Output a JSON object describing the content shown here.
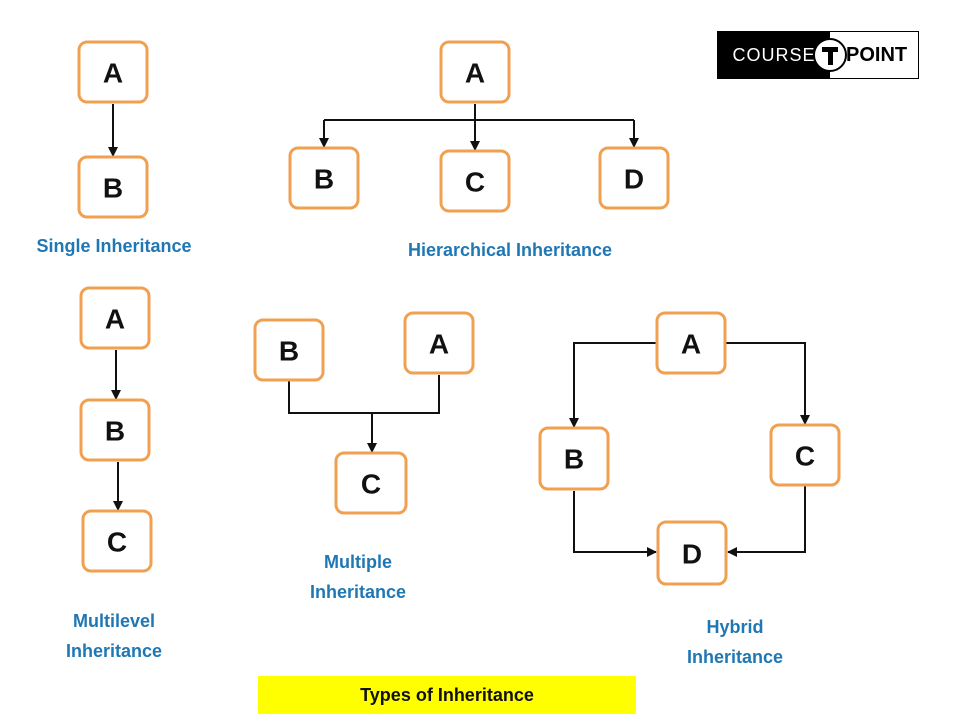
{
  "diagrams": [
    {
      "key": "single",
      "title": "Single Inheritance",
      "nodes": [
        {
          "id": "A",
          "label": "A"
        },
        {
          "id": "B",
          "label": "B"
        }
      ],
      "edges": [
        [
          "A",
          "B"
        ]
      ]
    },
    {
      "key": "hierarchical",
      "title": "Hierarchical Inheritance",
      "nodes": [
        {
          "id": "A",
          "label": "A"
        },
        {
          "id": "B",
          "label": "B"
        },
        {
          "id": "C",
          "label": "C"
        },
        {
          "id": "D",
          "label": "D"
        }
      ],
      "edges": [
        [
          "A",
          "B"
        ],
        [
          "A",
          "C"
        ],
        [
          "A",
          "D"
        ]
      ]
    },
    {
      "key": "multilevel",
      "title": "Multilevel Inheritance",
      "nodes": [
        {
          "id": "A",
          "label": "A"
        },
        {
          "id": "B",
          "label": "B"
        },
        {
          "id": "C",
          "label": "C"
        }
      ],
      "edges": [
        [
          "A",
          "B"
        ],
        [
          "B",
          "C"
        ]
      ]
    },
    {
      "key": "multiple",
      "title": "Multiple Inheritance",
      "nodes": [
        {
          "id": "B",
          "label": "B"
        },
        {
          "id": "A",
          "label": "A"
        },
        {
          "id": "C",
          "label": "C"
        }
      ],
      "edges": [
        [
          "B",
          "C"
        ],
        [
          "A",
          "C"
        ]
      ]
    },
    {
      "key": "hybrid",
      "title": "Hybrid Inheritance",
      "nodes": [
        {
          "id": "A",
          "label": "A"
        },
        {
          "id": "B",
          "label": "B"
        },
        {
          "id": "C",
          "label": "C"
        },
        {
          "id": "D",
          "label": "D"
        }
      ],
      "edges": [
        [
          "A",
          "B"
        ],
        [
          "A",
          "C"
        ],
        [
          "B",
          "D"
        ],
        [
          "C",
          "D"
        ]
      ]
    }
  ],
  "caption": "Types of Inheritance",
  "logo": {
    "left_text": "COURSE",
    "right_text": "POINT"
  },
  "colors": {
    "node_border": "#f0a050",
    "label_text": "#1f77b4",
    "caption_bg": "#ffff00",
    "edge": "#111111"
  }
}
